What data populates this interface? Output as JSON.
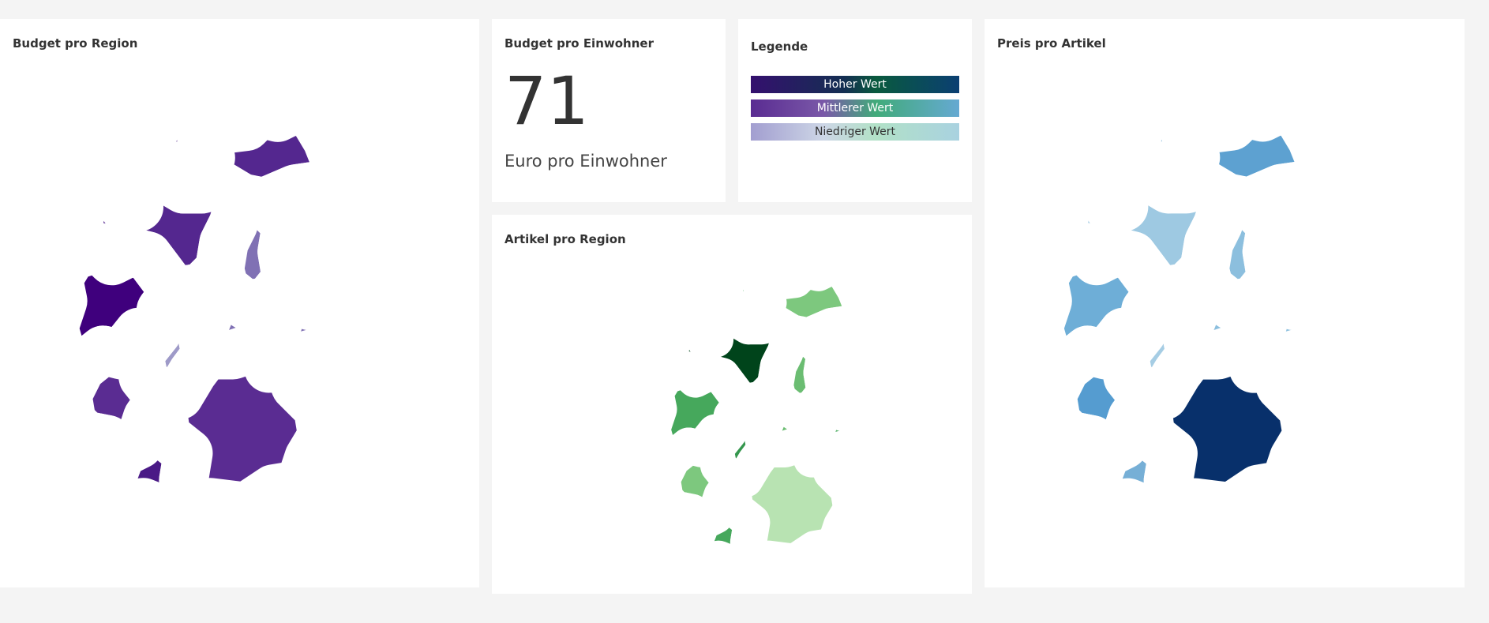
{
  "panels": {
    "budget_region": {
      "title": "Budget pro Region",
      "colors": {
        "SH": "#54278f",
        "MV": "#54278f",
        "HH": "#54278f",
        "HB": "#54278f",
        "NI": "#54278f",
        "NW": "#3f007d",
        "ST": "#8071b4",
        "BE": "#9e9ac8",
        "BB": "#9e9ac8",
        "SN": "#8071b4",
        "TH": "#8071b4",
        "HE": "#9e9ac8",
        "RP": "#5a2c92",
        "SL": "#cac8e1",
        "BW": "#4a1a86",
        "BY": "#5a2c92"
      }
    },
    "budget_einwohner": {
      "title": "Budget pro Einwohner",
      "value": "71",
      "unit": "Euro pro Einwohner"
    },
    "legend": {
      "title": "Legende",
      "items": [
        {
          "label": "Hoher Wert"
        },
        {
          "label": "Mittlerer Wert"
        },
        {
          "label": "Niedriger Wert"
        }
      ]
    },
    "artikel_region": {
      "title": "Artikel pro Region",
      "colors": {
        "SH": "#5bb46e",
        "MV": "#7dc87e",
        "HH": "#5bb46e",
        "HB": "#00441b",
        "NI": "#00441b",
        "NW": "#46a85c",
        "ST": "#6bbd72",
        "BE": "#2f9a4f",
        "BB": "#39a156",
        "SN": "#5bb46e",
        "TH": "#6bbd72",
        "HE": "#35974e",
        "RP": "#7dc87e",
        "SL": "#2f8c48",
        "BW": "#46a85c",
        "BY": "#b8e3b2"
      }
    },
    "preis_artikel": {
      "title": "Preis pro Artikel",
      "colors": {
        "SH": "#76afd6",
        "MV": "#5da1d1",
        "HH": "#5da1d1",
        "HB": "#9ec9e2",
        "NI": "#9ec9e2",
        "NW": "#6eaed7",
        "ST": "#8cbfde",
        "BE": "#a6cde4",
        "BB": "#a6cde4",
        "SN": "#8cbfde",
        "TH": "#8cbfde",
        "HE": "#a6cde4",
        "RP": "#559cd0",
        "SL": "#c2d9ec",
        "BW": "#76afd6",
        "BY": "#08306b"
      }
    }
  }
}
